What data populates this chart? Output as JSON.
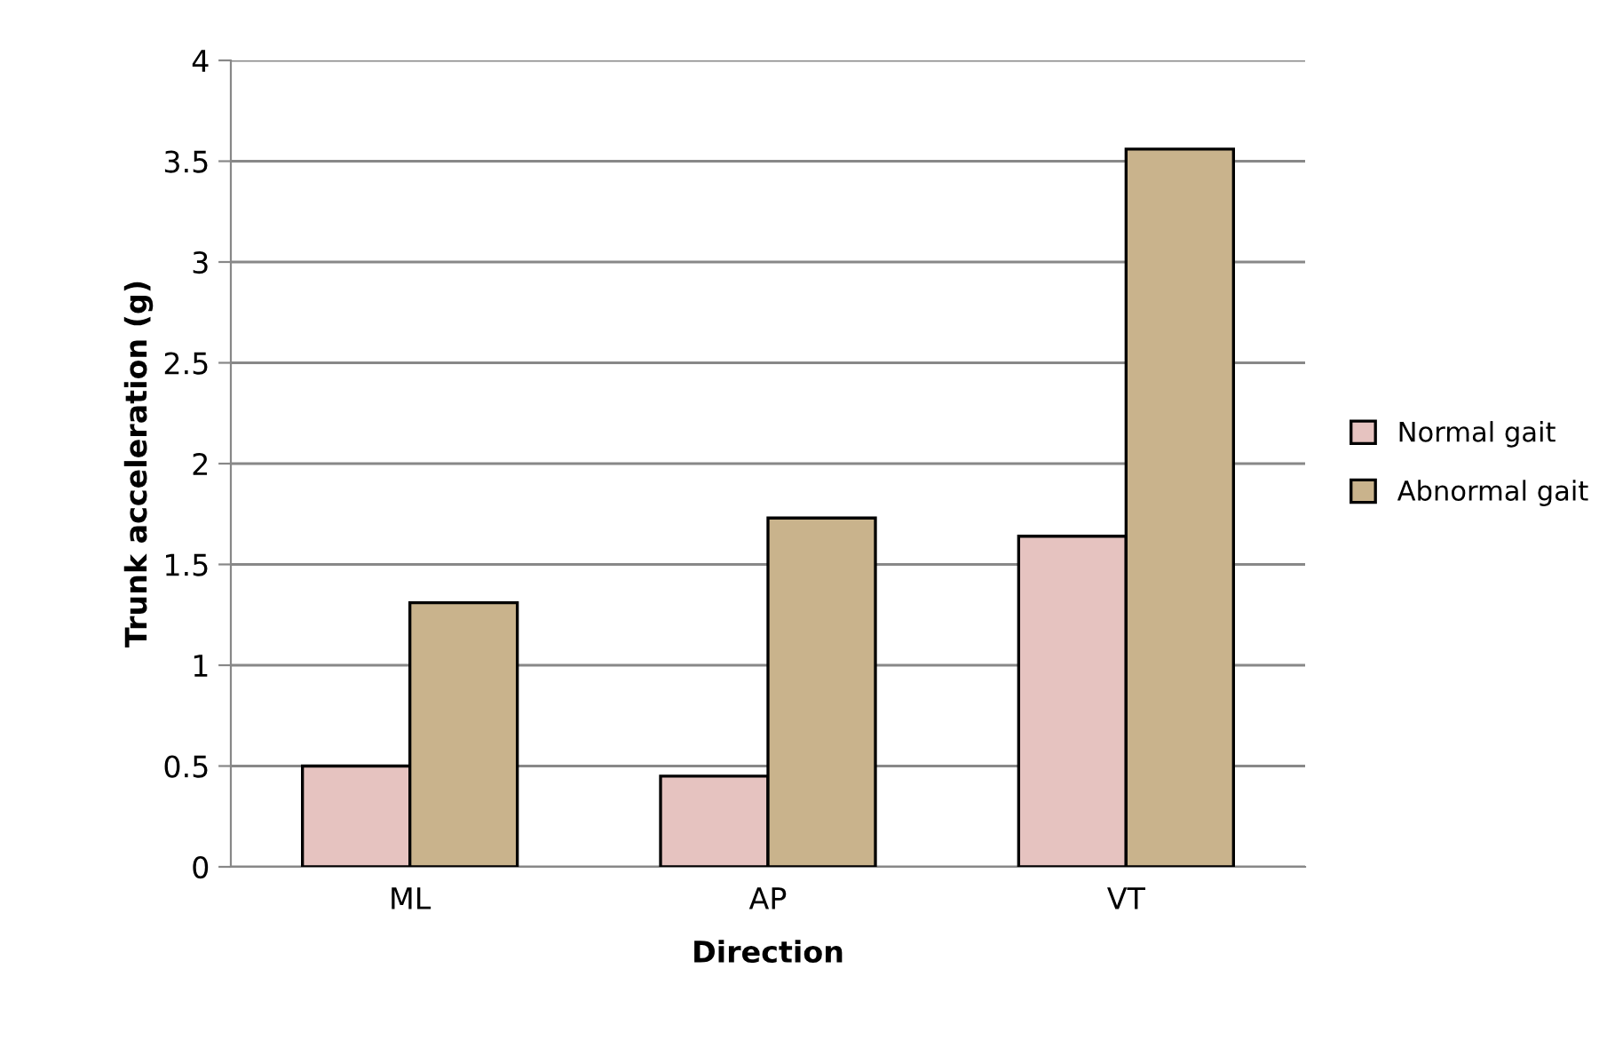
{
  "chart_data": {
    "type": "bar",
    "xlabel": "Direction",
    "ylabel": "Trunk acceleration (g)",
    "categories": [
      "ML",
      "AP",
      "VT"
    ],
    "series": [
      {
        "name": "Normal gait",
        "color": "#e6c3c0",
        "values": [
          0.5,
          0.45,
          1.64
        ]
      },
      {
        "name": "Abnormal gait",
        "color": "#c9b38c",
        "values": [
          1.31,
          1.73,
          3.56
        ]
      }
    ],
    "ylim": [
      0,
      4
    ],
    "yticks": [
      0,
      0.5,
      1,
      1.5,
      2,
      2.5,
      3,
      3.5,
      4
    ],
    "grid": "y",
    "legend": "right"
  }
}
